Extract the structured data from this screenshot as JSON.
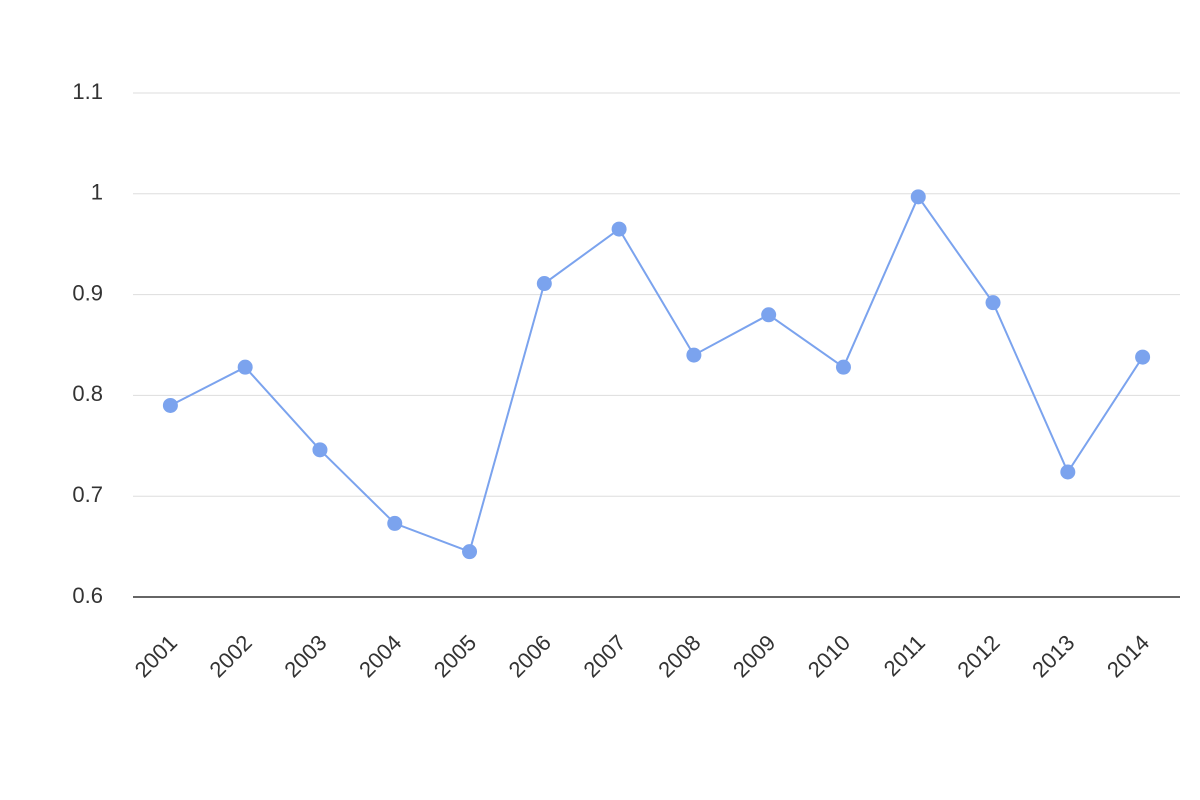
{
  "chart_data": {
    "type": "line",
    "categories": [
      "2001",
      "2002",
      "2003",
      "2004",
      "2005",
      "2006",
      "2007",
      "2008",
      "2009",
      "2010",
      "2011",
      "2012",
      "2013",
      "2014"
    ],
    "values": [
      0.79,
      0.828,
      0.746,
      0.673,
      0.645,
      0.911,
      0.965,
      0.84,
      0.88,
      0.828,
      0.997,
      0.892,
      0.724,
      0.838
    ],
    "color": "#7ba3ee",
    "ylim": [
      0.6,
      1.1
    ],
    "yticks": [
      0.6,
      0.7,
      0.8,
      0.9,
      1,
      1.1
    ],
    "grid": true
  }
}
